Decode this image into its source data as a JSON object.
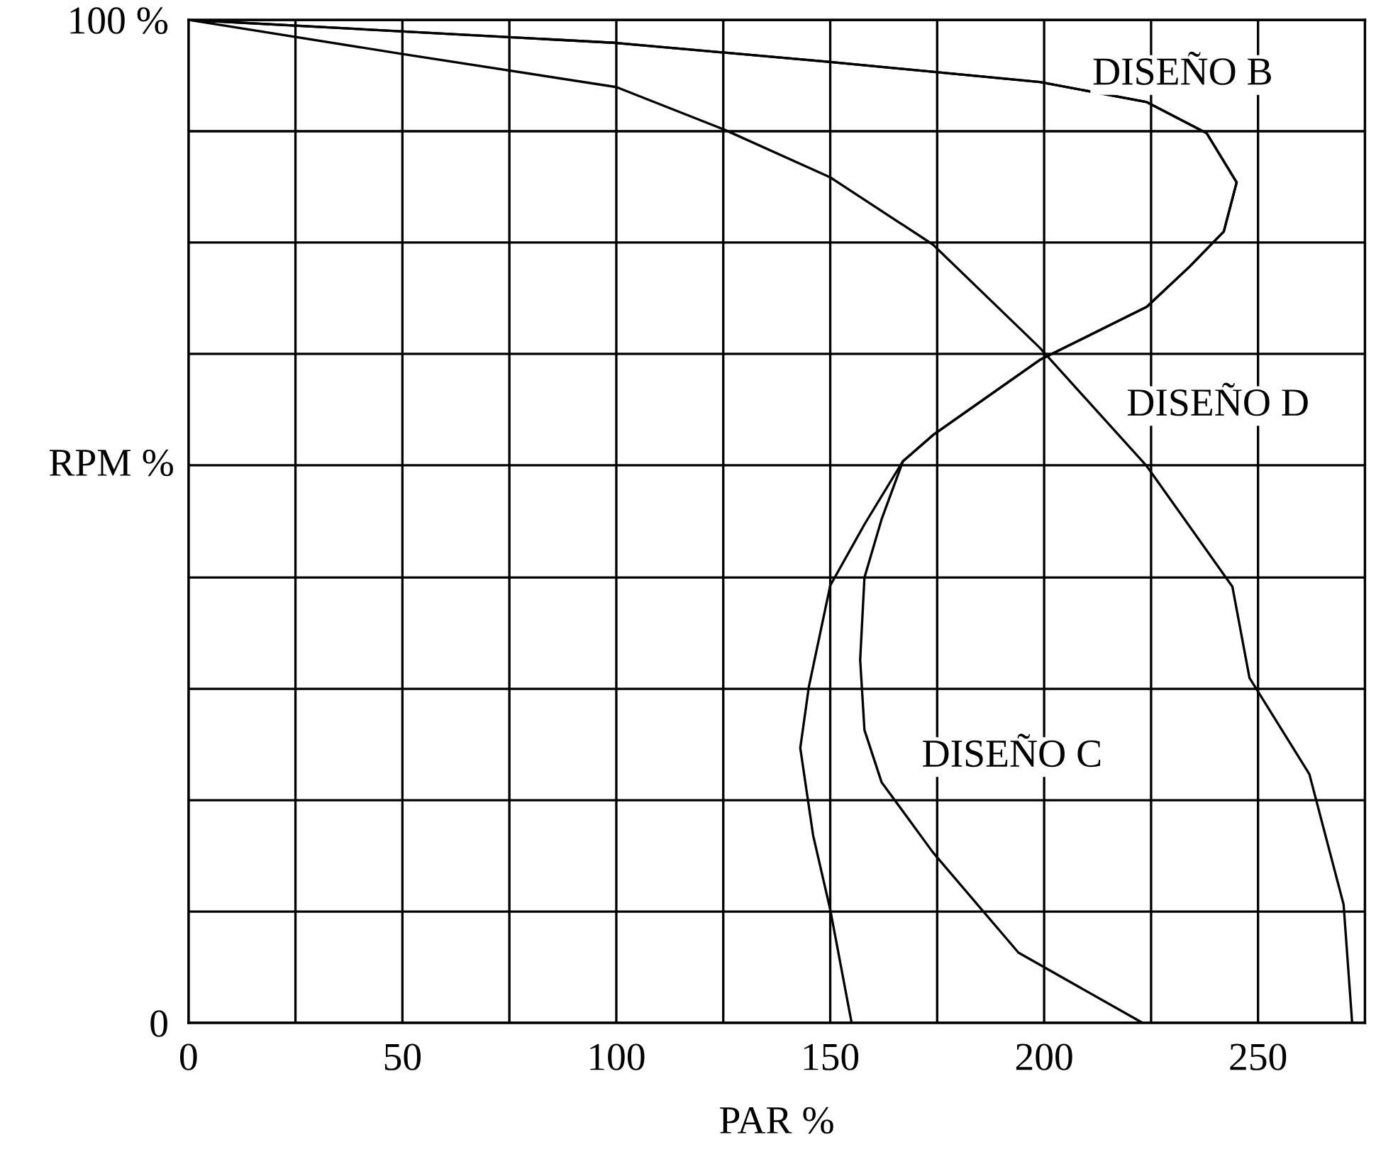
{
  "chart_data": {
    "type": "line",
    "xlabel": "PAR %",
    "ylabel": "RPM %",
    "xlim": [
      0,
      275
    ],
    "ylim": [
      0,
      100
    ],
    "xticks": [
      0,
      {
        "value": 25,
        "label": null
      },
      50,
      {
        "value": 75,
        "label": null
      },
      100,
      {
        "value": 125,
        "label": null
      },
      150,
      {
        "value": 175,
        "label": null
      },
      200,
      {
        "value": 225,
        "label": null
      },
      250,
      {
        "value": 275,
        "label": null
      }
    ],
    "yticks": [
      {
        "value": 0,
        "label": "0"
      },
      {
        "value": 11.1,
        "label": null
      },
      {
        "value": 22.2,
        "label": null
      },
      {
        "value": 33.3,
        "label": null
      },
      {
        "value": 44.4,
        "label": null
      },
      {
        "value": 55.6,
        "label": null
      },
      {
        "value": 66.7,
        "label": null
      },
      {
        "value": 77.8,
        "label": null
      },
      {
        "value": 88.9,
        "label": null
      },
      {
        "value": 100,
        "label": "100 %"
      }
    ],
    "grid": true,
    "marker": "none",
    "line_style": "solid",
    "series": [
      {
        "color": "#000000",
        "x": [
          0,
          100,
          150,
          199,
          224,
          238,
          245,
          242,
          234,
          224,
          199,
          174,
          167,
          158,
          150,
          145,
          143,
          146,
          150,
          155
        ],
        "values": [
          100,
          97.7,
          95.8,
          93.8,
          91.8,
          88.7,
          83.8,
          78.9,
          75.4,
          71.4,
          66.1,
          58.6,
          56,
          49.7,
          43.6,
          33.5,
          27.4,
          18.7,
          11.3,
          0
        ]
      },
      {
        "color": "#000000",
        "x": [
          0,
          100,
          150,
          199,
          224,
          238,
          245,
          242,
          234,
          224,
          199,
          174,
          167,
          162,
          158,
          157,
          158,
          162,
          174,
          194,
          223
        ],
        "values": [
          100,
          97.7,
          95.8,
          93.8,
          91.8,
          88.7,
          83.8,
          78.9,
          75.4,
          71.4,
          66.1,
          58.6,
          56,
          50.2,
          44.4,
          36.2,
          29.2,
          24,
          17,
          7,
          0
        ]
      },
      {
        "color": "#000000",
        "x": [
          0,
          50,
          100,
          125,
          150,
          174,
          199,
          224,
          244,
          248,
          262,
          270,
          272
        ],
        "values": [
          100,
          96.6,
          93.3,
          89.1,
          84.3,
          77.6,
          67.3,
          55.5,
          43.5,
          34.4,
          24.8,
          11.8,
          0
        ]
      }
    ],
    "annotations": [
      "DISEÑO B",
      "DISEÑO D",
      "DISEÑO C"
    ]
  }
}
